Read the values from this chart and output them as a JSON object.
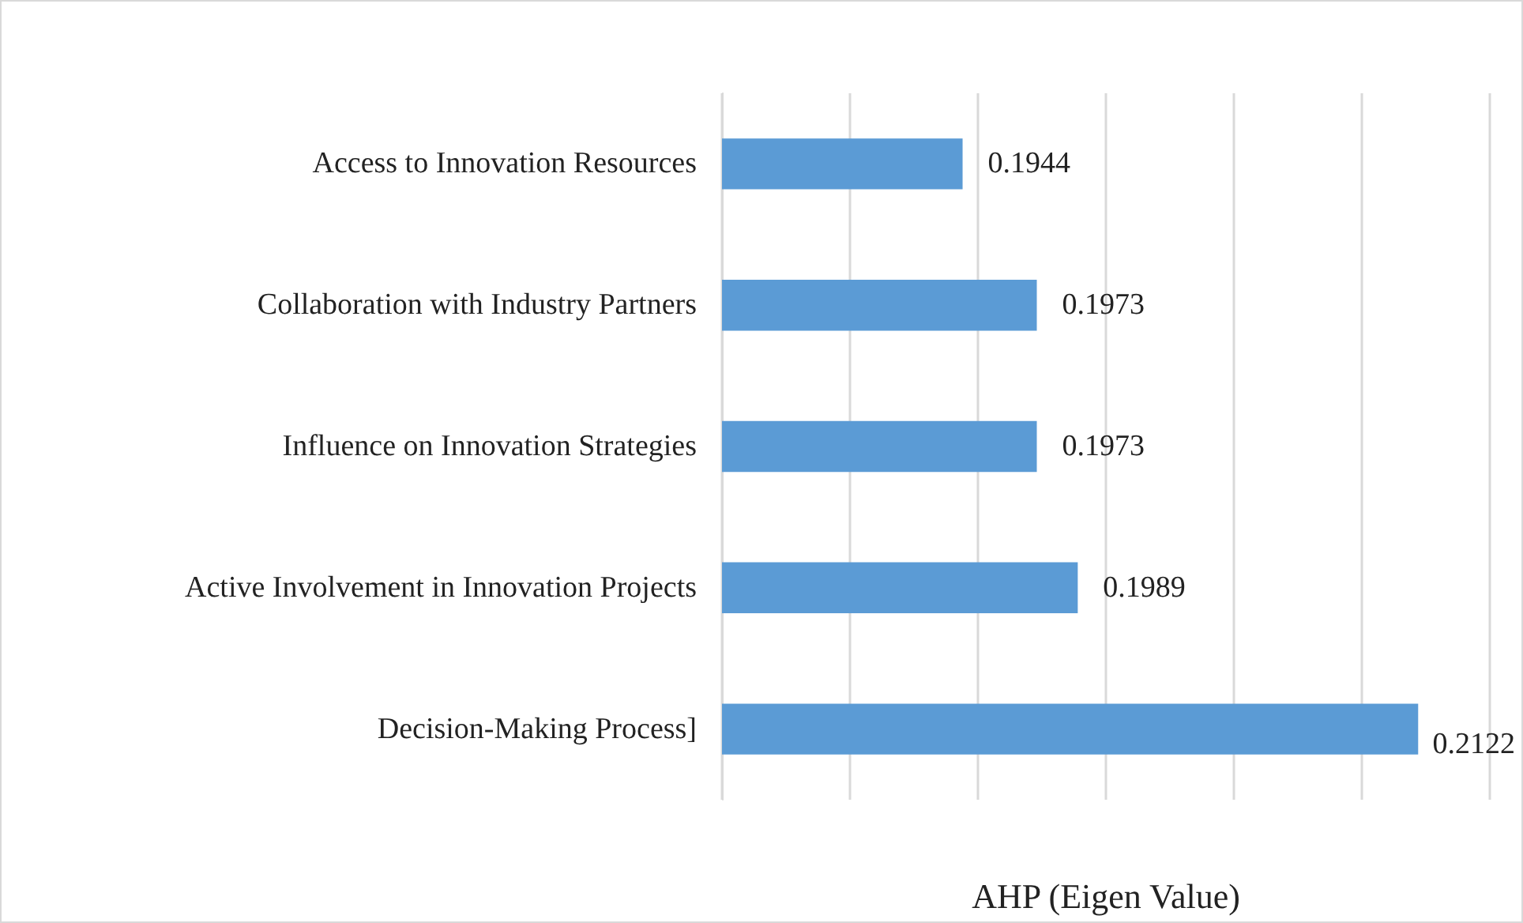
{
  "chart_data": {
    "type": "bar",
    "orientation": "horizontal",
    "xlabel": "AHP (Eigen Value)",
    "categories": [
      "Access to Innovation Resources",
      "Collaboration with Industry Partners",
      "Influence on Innovation Strategies",
      "Active Involvement in Innovation Projects",
      "Decision-Making Process]"
    ],
    "values": [
      0.1944,
      0.1973,
      0.1973,
      0.1989,
      0.2122
    ],
    "color": "#5b9bd5",
    "xlim": [
      0.185,
      0.215
    ],
    "xticks": [
      {
        "value": 0.185,
        "label": null
      },
      {
        "value": 0.19,
        "label": null
      },
      {
        "value": 0.195,
        "label": null
      },
      {
        "value": 0.2,
        "label": null
      },
      {
        "value": 0.205,
        "label": null
      },
      {
        "value": 0.21,
        "label": null
      },
      {
        "value": 0.215,
        "label": null
      }
    ],
    "tick_labels": "y",
    "grid": "x",
    "data_labels": true
  }
}
